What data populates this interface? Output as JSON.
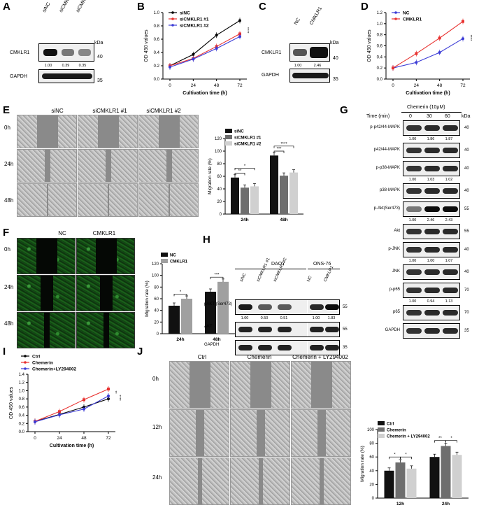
{
  "panels": {
    "A": {
      "label": "A",
      "lanes": [
        "siNC",
        "siCMKLR1 #1",
        "siCMKLR1 #2"
      ],
      "rows": [
        "CMKLR1",
        "GAPDH"
      ],
      "kda_label": "kDa",
      "kda": [
        "40",
        "35"
      ],
      "quant": [
        "1.00",
        "0.39",
        "0.35"
      ]
    },
    "B": {
      "label": "B",
      "legend": [
        "siNC",
        "siCMKLR1 #1",
        "siCMKLR1 #2"
      ],
      "ylabel": "OD 450 values",
      "xlabel": "Cultivation time (h)",
      "stars": "****"
    },
    "C": {
      "label": "C",
      "lanes": [
        "NC",
        "CMKLR1"
      ],
      "rows": [
        "CMKLR1",
        "GAPDH"
      ],
      "kda_label": "kDa",
      "kda": [
        "40",
        "35"
      ],
      "quant": [
        "1.00",
        "2.46"
      ]
    },
    "D": {
      "label": "D",
      "legend": [
        "NC",
        "CMKLR1"
      ],
      "ylabel": "OD 450 values",
      "xlabel": "Cultivation time (h)",
      "stars": "****"
    },
    "E": {
      "label": "E",
      "cols": [
        "siNC",
        "siCMKLR1 #1",
        "siCMKLR1 #2"
      ],
      "rows": [
        "0h",
        "24h",
        "48h"
      ],
      "legend": [
        "siNC",
        "siCMKLR1 #1",
        "siCMKLR1 #2"
      ],
      "ylabel": "Migration rate (%)",
      "groups": [
        "24h",
        "48h"
      ],
      "sig": [
        "**",
        "*",
        "***",
        "****"
      ]
    },
    "F": {
      "label": "F",
      "cols": [
        "NC",
        "CMKLR1"
      ],
      "rows": [
        "0h",
        "24h",
        "48h"
      ],
      "legend": [
        "NC",
        "CMKLR1"
      ],
      "ylabel": "Migration rate (%)",
      "groups": [
        "24h",
        "48h"
      ],
      "sig": [
        "*",
        "***"
      ]
    },
    "G": {
      "label": "G",
      "treatment": "Chemerin (10μM)",
      "time_label": "Time (min)",
      "times": [
        "0",
        "30",
        "60"
      ],
      "kda_label": "kDa",
      "rows": [
        {
          "name": "p-p42/44-MAPK",
          "kda": "40",
          "quant": [
            "1.00",
            "1.86",
            "1.87"
          ]
        },
        {
          "name": "p42/44-MAPK",
          "kda": "40",
          "quant": []
        },
        {
          "name": "p-p38-MAPK",
          "kda": "40",
          "quant": [
            "1.00",
            "1.03",
            "1.02"
          ]
        },
        {
          "name": "p38-MAPK",
          "kda": "40",
          "quant": []
        },
        {
          "name": "p-Akt(Ser473)",
          "kda": "55",
          "quant": [
            "1.00",
            "2.46",
            "2.43"
          ]
        },
        {
          "name": "Akt",
          "kda": "55",
          "quant": []
        },
        {
          "name": "p-JNK",
          "kda": "40",
          "quant": [
            "1.00",
            "1.00",
            "1.07"
          ]
        },
        {
          "name": "JNK",
          "kda": "40",
          "quant": []
        },
        {
          "name": "p-p65",
          "kda": "70",
          "quant": [
            "1.00",
            "0.94",
            "1.13"
          ]
        },
        {
          "name": "p65",
          "kda": "70",
          "quant": []
        },
        {
          "name": "GAPDH",
          "kda": "35",
          "quant": []
        }
      ]
    },
    "H": {
      "label": "H",
      "group1": "DAOY",
      "group2": "ONS-76",
      "lanes": [
        "siNC",
        "siCMKLR1 #1",
        "siCMKLR1 #2",
        "NC",
        "CMKLR1"
      ],
      "rows": [
        {
          "name": "pAKT (Ser473)",
          "kda": "55",
          "quant": [
            "1.00",
            "0.50",
            "0.51",
            "1.00",
            "1.83"
          ]
        },
        {
          "name": "AKT",
          "kda": "55",
          "quant": []
        },
        {
          "name": "GAPDH",
          "kda": "35",
          "quant": []
        }
      ]
    },
    "I": {
      "label": "I",
      "legend": [
        "Ctrl",
        "Chemerin",
        "Chemerin+LY294002"
      ],
      "ylabel": "OD 450 values",
      "xlabel": "Cultivation time (h)",
      "stars": [
        "**",
        "****"
      ]
    },
    "J": {
      "label": "J",
      "cols": [
        "Ctrl",
        "Chemerin",
        "Chemerin + LY294002"
      ],
      "rows": [
        "0h",
        "12h",
        "24h"
      ],
      "legend": [
        "Ctrl",
        "Chemerin",
        "Chemerin + LY294002"
      ],
      "ylabel": "Migration rate (%)",
      "groups": [
        "12h",
        "24h"
      ],
      "sig": [
        "*",
        "*",
        "**",
        "*"
      ]
    }
  },
  "chart_data": [
    {
      "id": "B",
      "type": "line",
      "x": [
        0,
        24,
        48,
        72
      ],
      "xlabel": "Cultivation time (h)",
      "ylabel": "OD 450 values",
      "ylim": [
        0,
        1.0
      ],
      "yticks": [
        0,
        0.2,
        0.4,
        0.6,
        0.8,
        1.0
      ],
      "series": [
        {
          "name": "siNC",
          "color": "#000000",
          "values": [
            0.2,
            0.37,
            0.66,
            0.88
          ]
        },
        {
          "name": "siCMKLR1 #1",
          "color": "#e8312f",
          "values": [
            0.2,
            0.31,
            0.49,
            0.68
          ]
        },
        {
          "name": "siCMKLR1 #2",
          "color": "#3b3bd6",
          "values": [
            0.18,
            0.3,
            0.46,
            0.64
          ]
        }
      ]
    },
    {
      "id": "D",
      "type": "line",
      "x": [
        0,
        24,
        48,
        72
      ],
      "xlabel": "Cultivation time (h)",
      "ylabel": "OD 450 values",
      "ylim": [
        0,
        1.2
      ],
      "yticks": [
        0,
        0.2,
        0.4,
        0.6,
        0.8,
        1.0,
        1.2
      ],
      "series": [
        {
          "name": "NC",
          "color": "#3b3bd6",
          "values": [
            0.2,
            0.3,
            0.48,
            0.73
          ]
        },
        {
          "name": "CMKLR1",
          "color": "#e8312f",
          "values": [
            0.2,
            0.46,
            0.74,
            1.04
          ]
        }
      ]
    },
    {
      "id": "E",
      "type": "bar",
      "categories": [
        "24h",
        "48h"
      ],
      "ylabel": "Migration rate (%)",
      "ylim": [
        0,
        120
      ],
      "yticks": [
        0,
        20,
        40,
        60,
        80,
        100,
        120
      ],
      "series": [
        {
          "name": "siNC",
          "color": "#111111",
          "values": [
            58,
            93
          ]
        },
        {
          "name": "siCMKLR1 #1",
          "color": "#6e6e6e",
          "values": [
            42,
            61
          ]
        },
        {
          "name": "siCMKLR1 #2",
          "color": "#d0d0d0",
          "values": [
            44,
            66
          ]
        }
      ]
    },
    {
      "id": "F",
      "type": "bar",
      "categories": [
        "24h",
        "48h"
      ],
      "ylabel": "Migration rate (%)",
      "ylim": [
        0,
        120
      ],
      "yticks": [
        0,
        20,
        40,
        60,
        80,
        100,
        120
      ],
      "series": [
        {
          "name": "NC",
          "color": "#111111",
          "values": [
            48,
            72
          ]
        },
        {
          "name": "CMKLR1",
          "color": "#a0a0a0",
          "values": [
            60,
            89
          ]
        }
      ]
    },
    {
      "id": "I",
      "type": "line",
      "x": [
        0,
        24,
        48,
        72
      ],
      "xlabel": "Cultivation time (h)",
      "ylabel": "OD 450 values",
      "ylim": [
        0,
        1.4
      ],
      "yticks": [
        0,
        0.2,
        0.4,
        0.6,
        0.8,
        1.0,
        1.2,
        1.4
      ],
      "series": [
        {
          "name": "Ctrl",
          "color": "#000000",
          "values": [
            0.25,
            0.42,
            0.6,
            0.8
          ]
        },
        {
          "name": "Chemerin",
          "color": "#e8312f",
          "values": [
            0.25,
            0.49,
            0.78,
            1.04
          ]
        },
        {
          "name": "Chemerin+LY294002",
          "color": "#3b3bd6",
          "values": [
            0.24,
            0.41,
            0.55,
            0.87
          ]
        }
      ]
    },
    {
      "id": "J",
      "type": "bar",
      "categories": [
        "12h",
        "24h"
      ],
      "ylabel": "Migration rate (%)",
      "ylim": [
        0,
        100
      ],
      "yticks": [
        0,
        20,
        40,
        60,
        80,
        100
      ],
      "series": [
        {
          "name": "Ctrl",
          "color": "#111111",
          "values": [
            40,
            60
          ]
        },
        {
          "name": "Chemerin",
          "color": "#6e6e6e",
          "values": [
            52,
            76
          ]
        },
        {
          "name": "Chemerin + LY294002",
          "color": "#d0d0d0",
          "values": [
            43,
            63
          ]
        }
      ]
    }
  ]
}
